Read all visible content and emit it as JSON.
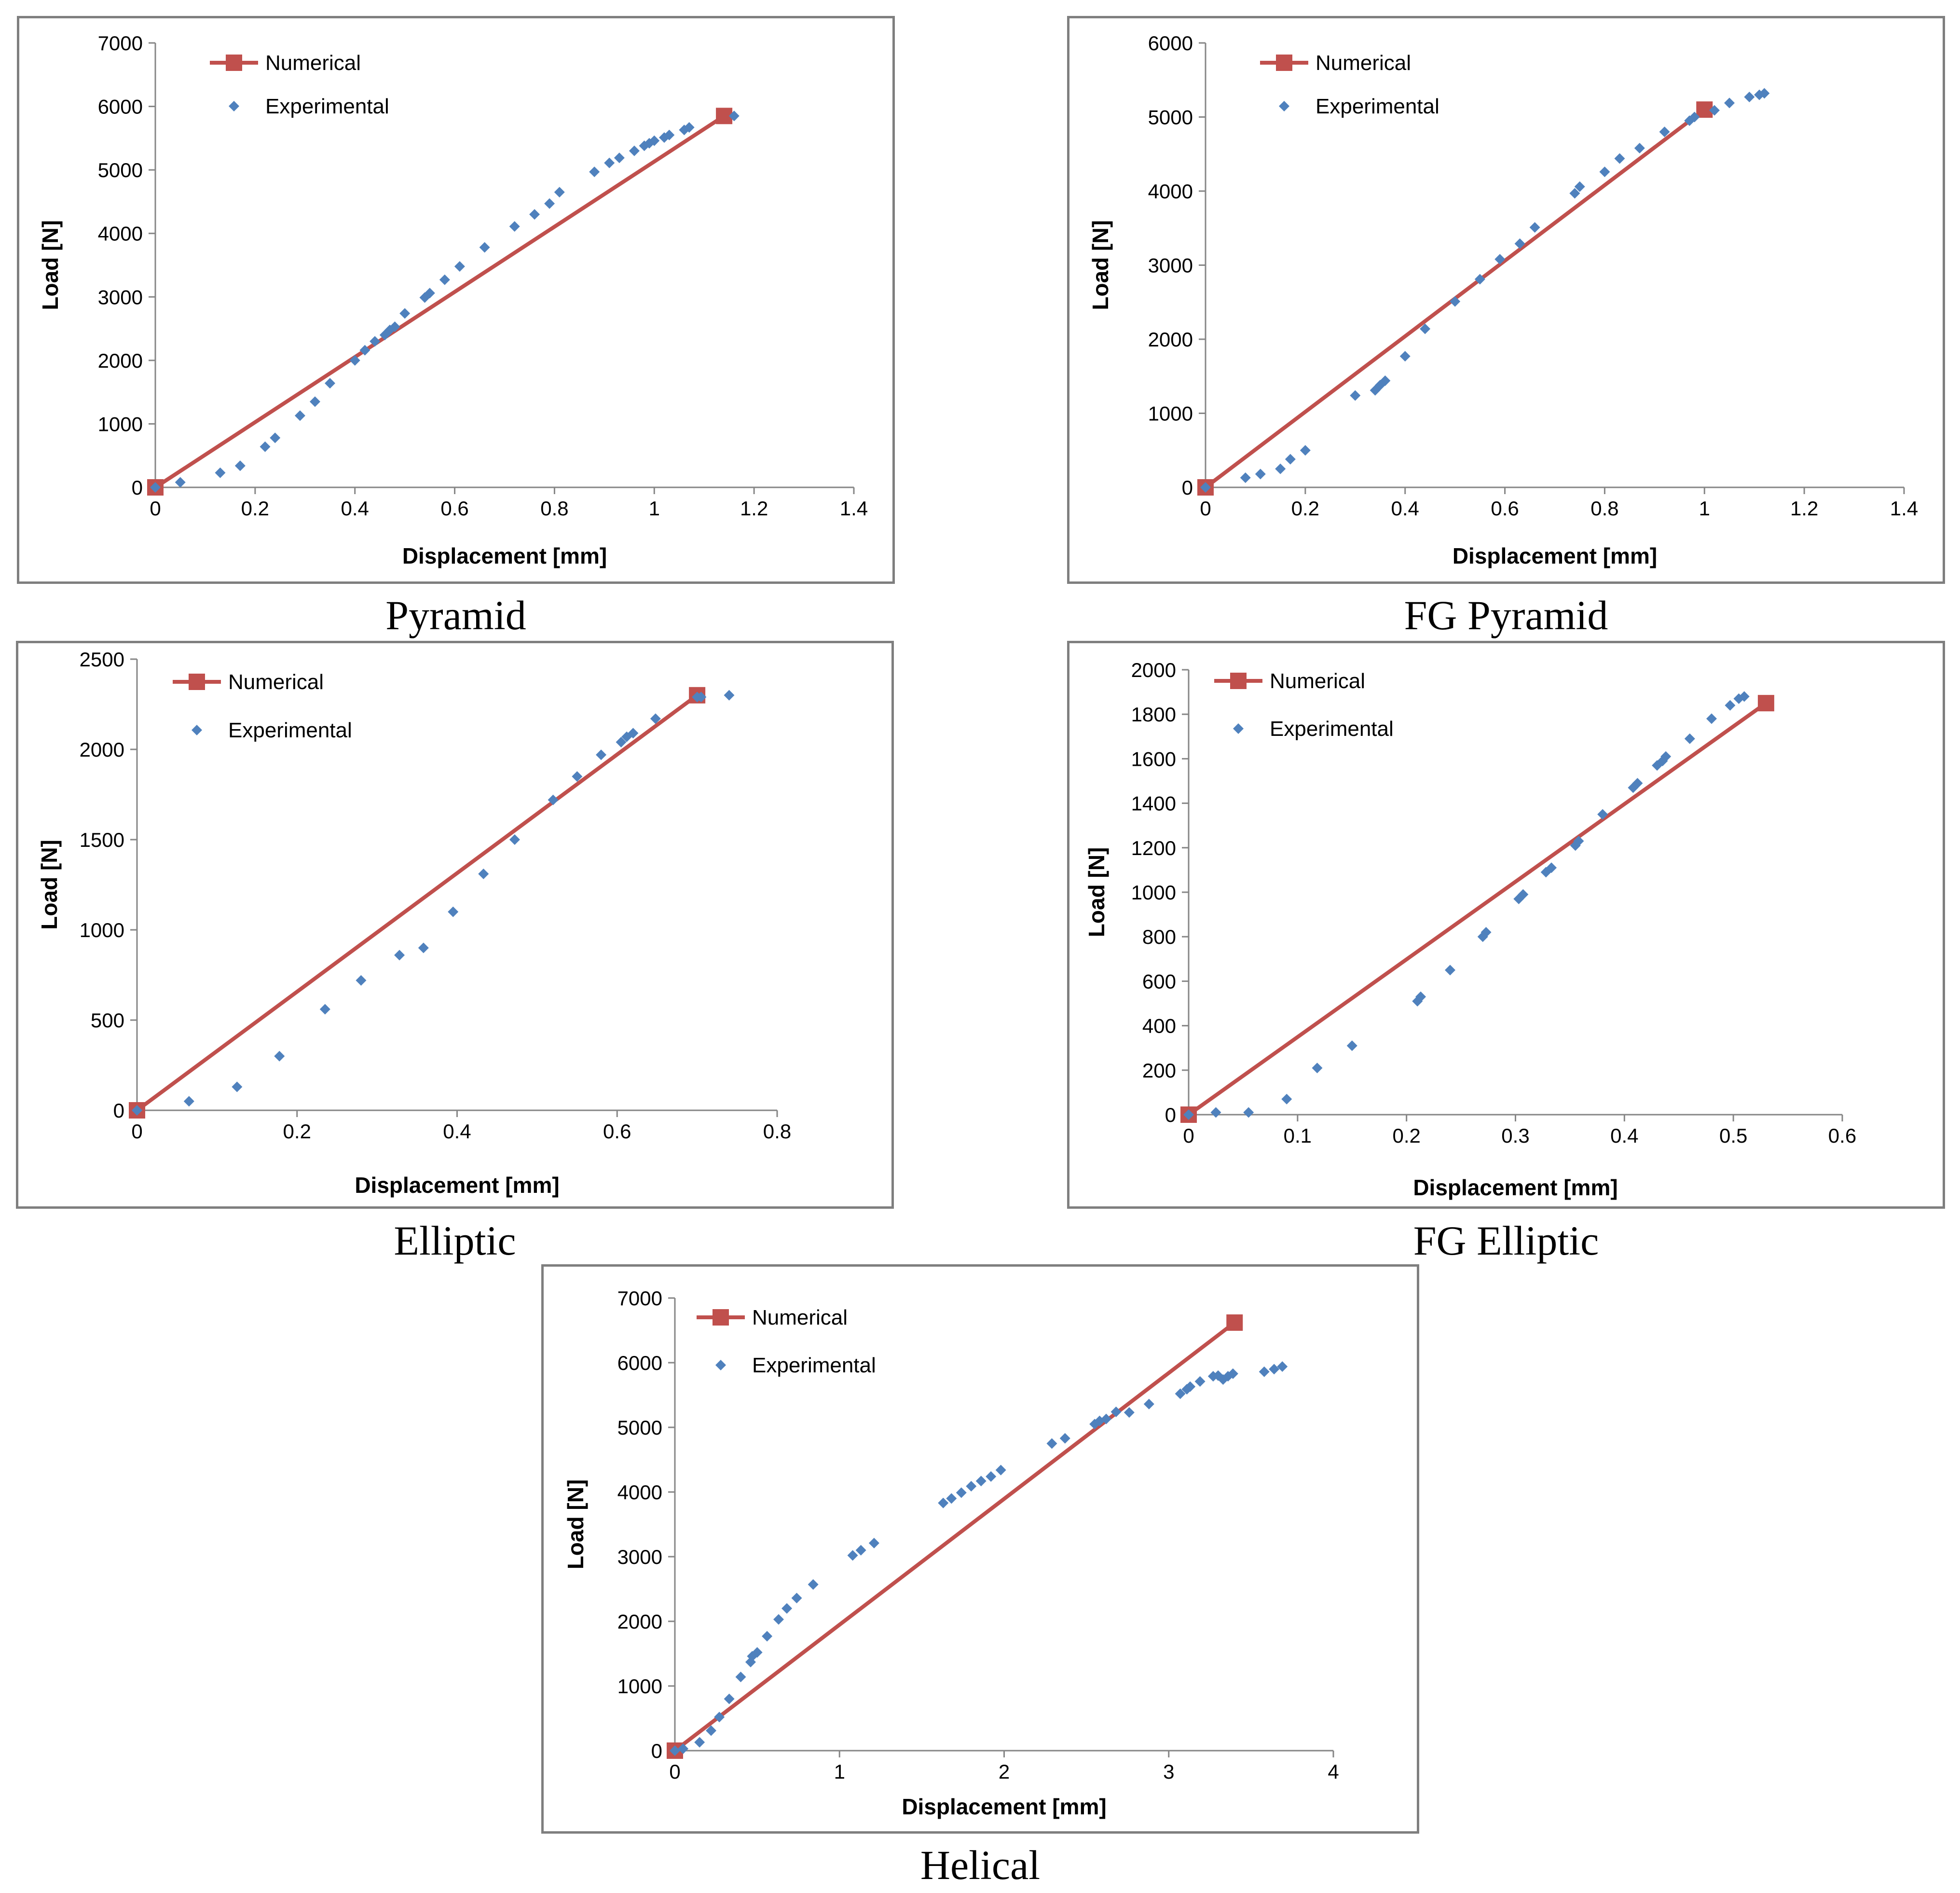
{
  "colors": {
    "numerical": "#c0504d",
    "experimental": "#4f81bd",
    "axis": "#868686",
    "border": "#7f7f7f"
  },
  "chart_data": [
    {
      "id": "pyramid",
      "type": "scatter",
      "caption": "Pyramid",
      "xlabel": "Displacement [mm]",
      "ylabel": "Load [N]",
      "xlim": [
        0,
        1.4
      ],
      "ylim": [
        0,
        7000
      ],
      "xticks": [
        "0",
        "0.2",
        "0.4",
        "0.6",
        "0.8",
        "1",
        "1.2",
        "1.4"
      ],
      "yticks": [
        "0",
        "1000",
        "2000",
        "3000",
        "4000",
        "5000",
        "6000",
        "7000"
      ],
      "legend": [
        "Numerical",
        "Experimental"
      ],
      "series": [
        {
          "name": "Numerical",
          "x": [
            0,
            1.14
          ],
          "y": [
            0,
            5850
          ]
        },
        {
          "name": "Experimental",
          "x": [
            0,
            0.05,
            0.13,
            0.17,
            0.22,
            0.24,
            0.29,
            0.32,
            0.35,
            0.4,
            0.42,
            0.44,
            0.46,
            0.47,
            0.48,
            0.5,
            0.54,
            0.55,
            0.58,
            0.61,
            0.66,
            0.72,
            0.76,
            0.79,
            0.81,
            0.88,
            0.91,
            0.93,
            0.96,
            0.98,
            0.99,
            1.0,
            1.02,
            1.03,
            1.06,
            1.07,
            1.16
          ],
          "y": [
            0,
            80,
            230,
            340,
            640,
            780,
            1130,
            1350,
            1640,
            2000,
            2160,
            2300,
            2400,
            2480,
            2530,
            2740,
            2990,
            3060,
            3270,
            3480,
            3780,
            4110,
            4300,
            4470,
            4650,
            4970,
            5110,
            5190,
            5300,
            5380,
            5420,
            5460,
            5510,
            5550,
            5630,
            5670,
            5850
          ]
        }
      ]
    },
    {
      "id": "fg-pyramid",
      "type": "scatter",
      "caption": "FG Pyramid",
      "xlabel": "Displacement [mm]",
      "ylabel": "Load [N]",
      "xlim": [
        0,
        1.4
      ],
      "ylim": [
        0,
        6000
      ],
      "xticks": [
        "0",
        "0.2",
        "0.4",
        "0.6",
        "0.8",
        "1",
        "1.2",
        "1.4"
      ],
      "yticks": [
        "0",
        "1000",
        "2000",
        "3000",
        "4000",
        "5000",
        "6000"
      ],
      "legend": [
        "Numerical",
        "Experimental"
      ],
      "series": [
        {
          "name": "Numerical",
          "x": [
            0,
            1.0
          ],
          "y": [
            0,
            5100
          ]
        },
        {
          "name": "Experimental",
          "x": [
            0,
            0.08,
            0.11,
            0.15,
            0.17,
            0.2,
            0.3,
            0.34,
            0.35,
            0.36,
            0.4,
            0.44,
            0.5,
            0.55,
            0.59,
            0.63,
            0.66,
            0.74,
            0.75,
            0.8,
            0.83,
            0.87,
            0.92,
            0.97,
            0.98,
            1.02,
            1.05,
            1.09,
            1.11,
            1.12
          ],
          "y": [
            0,
            130,
            180,
            250,
            380,
            500,
            1240,
            1310,
            1380,
            1440,
            1770,
            2140,
            2510,
            2810,
            3080,
            3290,
            3510,
            3970,
            4060,
            4260,
            4440,
            4580,
            4800,
            4950,
            5000,
            5090,
            5190,
            5270,
            5300,
            5320
          ]
        }
      ]
    },
    {
      "id": "elliptic",
      "type": "scatter",
      "caption": "Elliptic",
      "xlabel": "Displacement [mm]",
      "ylabel": "Load [N]",
      "xlim": [
        0,
        0.8
      ],
      "ylim": [
        0,
        2500
      ],
      "xticks": [
        "0",
        "0.2",
        "0.4",
        "0.6",
        "0.8"
      ],
      "yticks": [
        "0",
        "500",
        "1000",
        "1500",
        "2000",
        "2500"
      ],
      "legend": [
        "Numerical",
        "Experimental"
      ],
      "series": [
        {
          "name": "Numerical",
          "x": [
            0,
            0.7
          ],
          "y": [
            0,
            2300
          ]
        },
        {
          "name": "Experimental",
          "x": [
            0,
            0.065,
            0.125,
            0.178,
            0.235,
            0.28,
            0.328,
            0.358,
            0.395,
            0.433,
            0.472,
            0.52,
            0.55,
            0.58,
            0.605,
            0.612,
            0.62,
            0.648,
            0.7,
            0.705,
            0.74
          ],
          "y": [
            0,
            50,
            130,
            300,
            560,
            720,
            860,
            900,
            1100,
            1310,
            1500,
            1720,
            1850,
            1970,
            2040,
            2070,
            2090,
            2170,
            2290,
            2290,
            2300
          ]
        }
      ]
    },
    {
      "id": "fg-elliptic",
      "type": "scatter",
      "caption": "FG Elliptic",
      "xlabel": "Displacement [mm]",
      "ylabel": "Load [N]",
      "xlim": [
        0,
        0.6
      ],
      "ylim": [
        0,
        2000
      ],
      "xticks": [
        "0",
        "0.1",
        "0.2",
        "0.3",
        "0.4",
        "0.5",
        "0.6"
      ],
      "yticks": [
        "0",
        "200",
        "400",
        "600",
        "800",
        "1000",
        "1200",
        "1400",
        "1600",
        "1800",
        "2000"
      ],
      "legend": [
        "Numerical",
        "Experimental"
      ],
      "series": [
        {
          "name": "Numerical",
          "x": [
            0,
            0.53
          ],
          "y": [
            0,
            1850
          ]
        },
        {
          "name": "Experimental",
          "x": [
            0,
            0.025,
            0.055,
            0.09,
            0.118,
            0.15,
            0.21,
            0.213,
            0.24,
            0.27,
            0.273,
            0.303,
            0.307,
            0.328,
            0.333,
            0.355,
            0.358,
            0.38,
            0.408,
            0.412,
            0.43,
            0.435,
            0.438,
            0.46,
            0.48,
            0.497,
            0.505,
            0.51
          ],
          "y": [
            0,
            10,
            10,
            70,
            210,
            310,
            510,
            530,
            650,
            800,
            820,
            970,
            990,
            1090,
            1110,
            1210,
            1230,
            1350,
            1470,
            1490,
            1570,
            1590,
            1610,
            1690,
            1780,
            1840,
            1870,
            1880
          ]
        }
      ]
    },
    {
      "id": "helical",
      "type": "scatter",
      "caption": "Helical",
      "xlabel": "Displacement [mm]",
      "ylabel": "Load [N]",
      "xlim": [
        0,
        4
      ],
      "ylim": [
        0,
        7000
      ],
      "xticks": [
        "0",
        "1",
        "2",
        "3",
        "4"
      ],
      "yticks": [
        "0",
        "1000",
        "2000",
        "3000",
        "4000",
        "5000",
        "6000",
        "7000"
      ],
      "legend": [
        "Numerical",
        "Experimental"
      ],
      "series": [
        {
          "name": "Numerical",
          "x": [
            0,
            3.4
          ],
          "y": [
            0,
            6620
          ]
        },
        {
          "name": "Experimental",
          "x": [
            0,
            0.05,
            0.15,
            0.22,
            0.27,
            0.33,
            0.4,
            0.46,
            0.47,
            0.5,
            0.56,
            0.63,
            0.68,
            0.74,
            0.84,
            1.08,
            1.13,
            1.21,
            1.63,
            1.68,
            1.74,
            1.8,
            1.86,
            1.92,
            1.98,
            2.29,
            2.37,
            2.55,
            2.58,
            2.62,
            2.68,
            2.76,
            2.88,
            3.07,
            3.11,
            3.13,
            3.19,
            3.27,
            3.3,
            3.33,
            3.36,
            3.39,
            3.58,
            3.64,
            3.69
          ],
          "y": [
            0,
            30,
            130,
            310,
            520,
            800,
            1140,
            1370,
            1460,
            1520,
            1770,
            2030,
            2200,
            2360,
            2570,
            3020,
            3100,
            3210,
            3830,
            3900,
            3990,
            4090,
            4170,
            4240,
            4340,
            4750,
            4830,
            5050,
            5100,
            5130,
            5240,
            5230,
            5360,
            5520,
            5590,
            5630,
            5710,
            5790,
            5800,
            5740,
            5790,
            5830,
            5860,
            5900,
            5940
          ]
        }
      ]
    }
  ]
}
